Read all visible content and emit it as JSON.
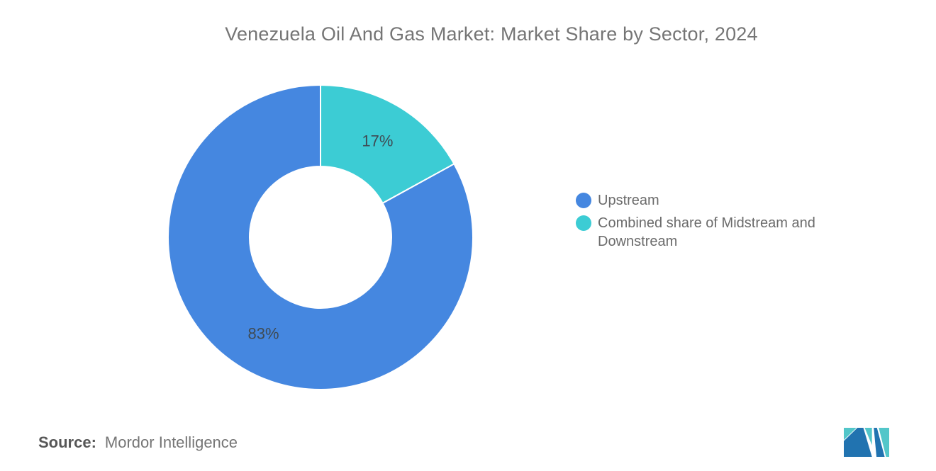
{
  "chart_data": {
    "type": "pie",
    "subtype": "donut",
    "title": "Venezuela Oil And Gas Market: Market Share by Sector, 2024",
    "units": "percent",
    "series": [
      {
        "name": "Upstream",
        "value": 83,
        "label": "83%",
        "color": "#4587E0"
      },
      {
        "name": "Combined share of Midstream and Downstream",
        "value": 17,
        "label": "17%",
        "color": "#3CCCD4"
      }
    ],
    "start_angle": "12 o'clock",
    "direction": "clockwise, smallest slice first",
    "inner_radius_ratio": 0.465,
    "legend_position": "right",
    "grid": "off",
    "background": "#FFFFFF",
    "title_color": "#757575",
    "legend_text_color": "#6B6B6B",
    "data_label_color": "#3F4B54",
    "slice_border_color": "#FFFFFF"
  },
  "footer": {
    "source_label": "Source:",
    "source_value": "Mordor Intelligence"
  },
  "logo": {
    "name": "Mordor Intelligence",
    "blue": "#2173B0",
    "teal": "#52C6C9"
  }
}
